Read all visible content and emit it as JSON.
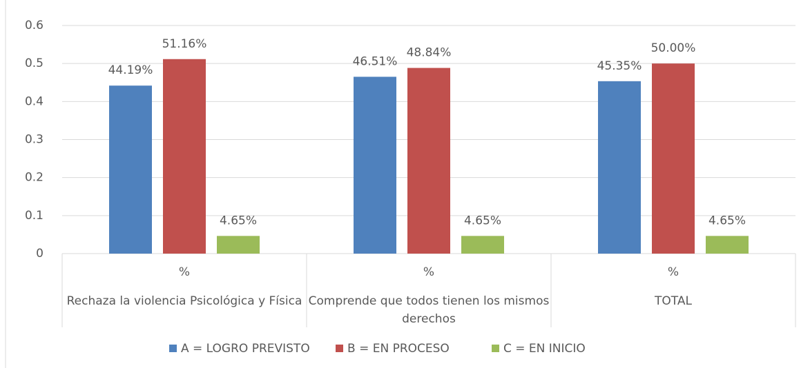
{
  "chart_data": {
    "type": "bar",
    "categories": [
      "%",
      "%",
      "%"
    ],
    "groups": [
      "Rechaza la violencia Psicológica y Física",
      "Comprende que todos tienen los mismos derechos",
      "TOTAL"
    ],
    "series": [
      {
        "name": "A = LOGRO PREVISTO",
        "color": "#4f81bd",
        "values": [
          0.4419,
          0.4651,
          0.4535
        ],
        "value_labels": [
          "44.19%",
          "46.51%",
          "45.35%"
        ]
      },
      {
        "name": "B = EN PROCESO",
        "color": "#c0504d",
        "values": [
          0.5116,
          0.4884,
          0.5
        ],
        "value_labels": [
          "51.16%",
          "48.84%",
          "50.00%"
        ]
      },
      {
        "name": "C = EN INICIO",
        "color": "#9bbb59",
        "values": [
          0.0465,
          0.0465,
          0.0465
        ],
        "value_labels": [
          "4.65%",
          "4.65%",
          "4.65%"
        ]
      }
    ],
    "ylim": [
      0,
      0.6
    ],
    "yticks": [
      0,
      0.1,
      0.2,
      0.3,
      0.4,
      0.5,
      0.6
    ],
    "grid": true,
    "legend": "bottom"
  }
}
